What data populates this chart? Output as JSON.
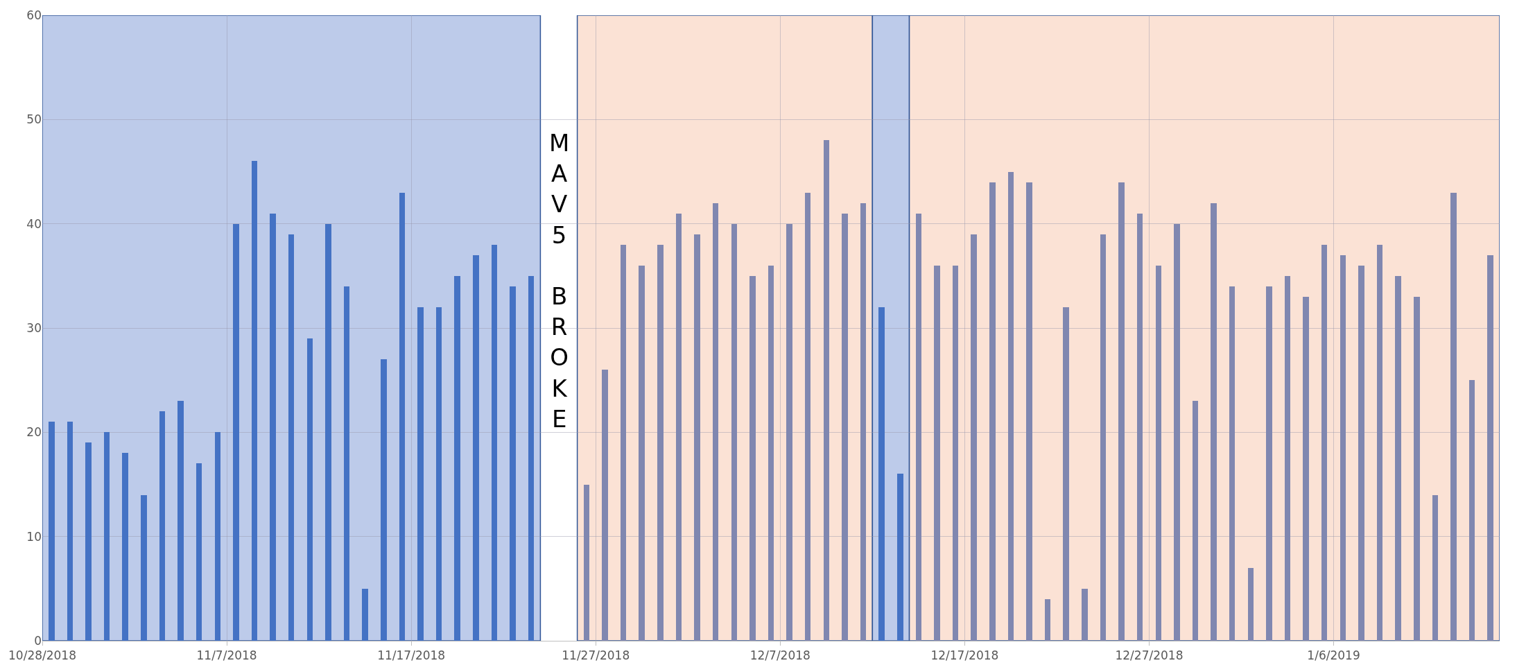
{
  "chart_data": {
    "type": "bar",
    "series": [
      {
        "color": "#4472c4",
        "x": [
          "2018-10-28T12:00",
          "2018-10-29T12:00",
          "2018-10-30T12:00",
          "2018-10-31T12:00",
          "2018-11-01T12:00",
          "2018-11-02T12:00",
          "2018-11-03T12:00",
          "2018-11-04T12:00",
          "2018-11-05T12:00",
          "2018-11-06T12:00",
          "2018-11-07T12:00",
          "2018-11-08T12:00",
          "2018-11-09T12:00",
          "2018-11-10T12:00",
          "2018-11-11T12:00",
          "2018-11-12T12:00",
          "2018-11-13T12:00",
          "2018-11-14T12:00",
          "2018-11-15T12:00",
          "2018-11-16T12:00",
          "2018-11-17T12:00",
          "2018-11-18T12:00",
          "2018-11-19T12:00",
          "2018-11-20T12:00",
          "2018-11-21T12:00",
          "2018-11-22T12:00",
          "2018-11-23T12:00",
          "2018-12-12T12:00",
          "2018-12-13T12:00"
        ],
        "values": [
          21,
          21,
          19,
          20,
          18,
          14,
          22,
          23,
          17,
          20,
          40,
          46,
          41,
          39,
          29,
          40,
          34,
          5,
          27,
          43,
          32,
          32,
          35,
          37,
          38,
          34,
          35,
          32,
          16
        ]
      },
      {
        "color": "#8087b0",
        "x": [
          "2018-11-26T12:00",
          "2018-11-27T12:00",
          "2018-11-28T12:00",
          "2018-11-29T12:00",
          "2018-11-30T12:00",
          "2018-12-01T12:00",
          "2018-12-02T12:00",
          "2018-12-03T12:00",
          "2018-12-04T12:00",
          "2018-12-05T12:00",
          "2018-12-06T12:00",
          "2018-12-07T12:00",
          "2018-12-08T12:00",
          "2018-12-09T12:00",
          "2018-12-10T12:00",
          "2018-12-11T12:00",
          "2018-12-14T12:00",
          "2018-12-15T12:00",
          "2018-12-16T12:00",
          "2018-12-17T12:00",
          "2018-12-18T12:00",
          "2018-12-19T12:00",
          "2018-12-20T12:00",
          "2018-12-21T12:00",
          "2018-12-22T12:00",
          "2018-12-23T12:00",
          "2018-12-24T12:00",
          "2018-12-25T12:00",
          "2018-12-26T12:00",
          "2018-12-27T12:00",
          "2018-12-28T12:00",
          "2018-12-29T12:00",
          "2018-12-30T12:00",
          "2018-12-31T12:00",
          "2019-01-01T12:00",
          "2019-01-02T12:00",
          "2019-01-03T12:00",
          "2019-01-04T12:00",
          "2019-01-05T12:00",
          "2019-01-06T12:00",
          "2019-01-07T12:00",
          "2019-01-08T12:00",
          "2019-01-09T12:00",
          "2019-01-10T12:00",
          "2019-01-11T12:00",
          "2019-01-12T12:00",
          "2019-01-13T12:00",
          "2019-01-14T12:00"
        ],
        "values": [
          15,
          26,
          38,
          36,
          38,
          41,
          39,
          42,
          40,
          35,
          36,
          40,
          43,
          48,
          41,
          42,
          41,
          36,
          36,
          39,
          44,
          45,
          44,
          4,
          32,
          5,
          39,
          44,
          41,
          36,
          40,
          23,
          42,
          34,
          7,
          34,
          35,
          33,
          38,
          37,
          36,
          38,
          35,
          33,
          14,
          43,
          25,
          37
        ]
      }
    ],
    "xlim": [
      "2018-10-28",
      "2019-01-15"
    ],
    "xticks": [
      {
        "value": "2018-10-28",
        "label": "10/28/2018"
      },
      {
        "value": "2018-11-07",
        "label": "11/7/2018"
      },
      {
        "value": "2018-11-17",
        "label": "11/17/2018"
      },
      {
        "value": "2018-11-27",
        "label": "11/27/2018"
      },
      {
        "value": "2018-12-07",
        "label": "12/7/2018"
      },
      {
        "value": "2018-12-17",
        "label": "12/17/2018"
      },
      {
        "value": "2018-12-27",
        "label": "12/27/2018"
      },
      {
        "value": "2019-01-06",
        "label": "1/6/2019"
      }
    ],
    "ylim": [
      0,
      60
    ],
    "yticks": [
      0,
      10,
      20,
      30,
      40,
      50,
      60
    ],
    "grid": true,
    "bands": [
      {
        "axis": "x",
        "from": "2018-10-28",
        "to": "2018-11-24",
        "color": "#bdcbea"
      },
      {
        "axis": "x",
        "from": "2018-11-26",
        "to": "2018-12-12",
        "color": "#fbe2d5"
      },
      {
        "axis": "x",
        "from": "2018-12-12",
        "to": "2018-12-14",
        "color": "#bdcbea"
      },
      {
        "axis": "x",
        "from": "2018-12-14",
        "to": "2019-01-15",
        "color": "#fbe2d5"
      }
    ],
    "annotations": [
      "MAV5 BROKE"
    ]
  }
}
